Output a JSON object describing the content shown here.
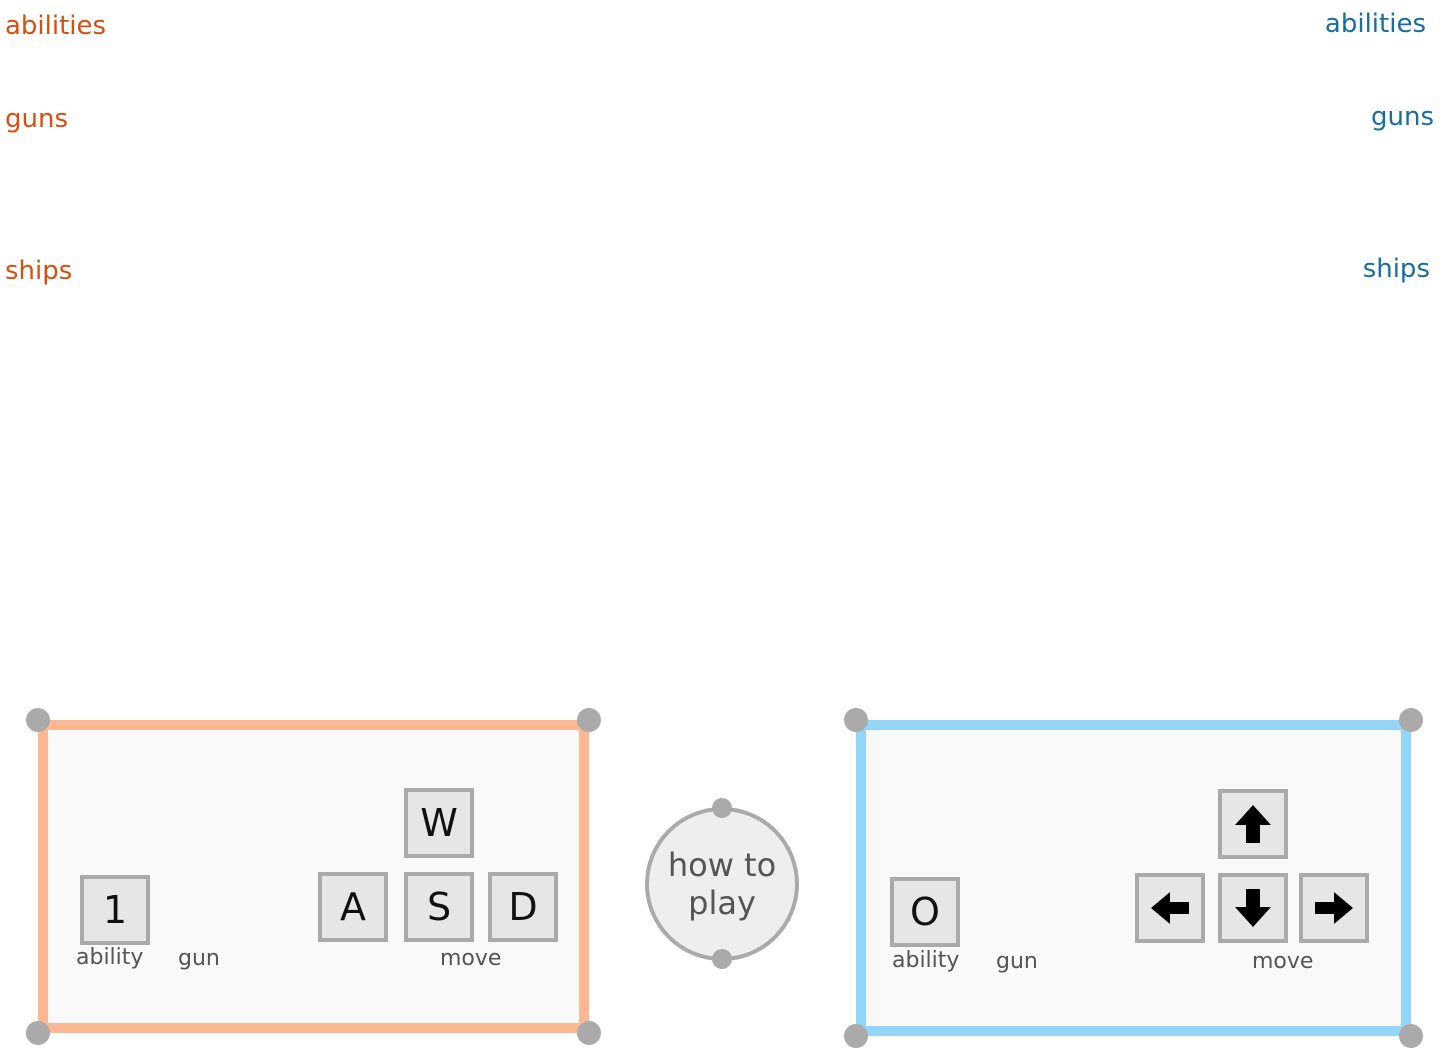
{
  "player1": {
    "color": "#d45012",
    "border_color": "#fcb893",
    "menu": {
      "abilities": "abilities",
      "guns": "guns",
      "ships": "ships"
    },
    "controls": {
      "ability_key": "1",
      "move_keys": {
        "up": "W",
        "left": "A",
        "down": "S",
        "right": "D"
      },
      "captions": {
        "ability": "ability",
        "gun": "gun",
        "move": "move"
      }
    }
  },
  "player2": {
    "color": "#1a6e9e",
    "border_color": "#93d6f9",
    "menu": {
      "abilities": "abilities",
      "guns": "guns",
      "ships": "ships"
    },
    "controls": {
      "ability_key": "O",
      "move_keys": {
        "up": "arrow-up-icon",
        "left": "arrow-left-icon",
        "down": "arrow-down-icon",
        "right": "arrow-right-icon"
      },
      "captions": {
        "ability": "ability",
        "gun": "gun",
        "move": "move"
      }
    }
  },
  "center": {
    "how_to_play": "how to play"
  }
}
